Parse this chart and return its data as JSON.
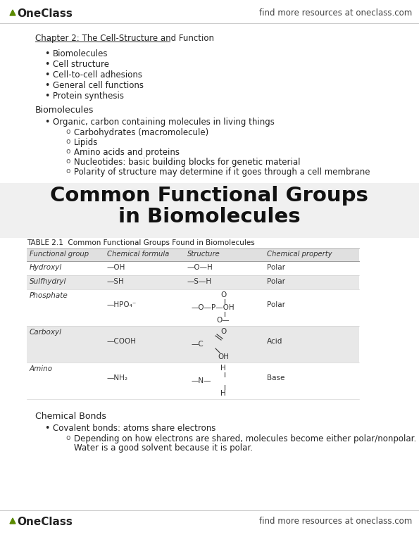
{
  "bg_color": "#ffffff",
  "header_text_right": "find more resources at oneclass.com",
  "footer_text_right": "find more resources at oneclass.com",
  "logo_color": "#5a8a00",
  "chapter_title": "Chapter 2: The Cell-Structure and Function",
  "bullet_items": [
    "Biomolecules",
    "Cell structure",
    "Cell-to-cell adhesions",
    "General cell functions",
    "Protein synthesis"
  ],
  "section_title": "Biomolecules",
  "sub_bullets": [
    "Organic, carbon containing molecules in living things"
  ],
  "sub_sub_bullets": [
    "Carbohydrates (macromolecule)",
    "Lipids",
    "Amino acids and proteins",
    "Nucleotides: basic building blocks for genetic material",
    "Polarity of structure may determine if it goes through a cell membrane"
  ],
  "big_title_line1": "Common Functional Groups",
  "big_title_line2": "in Biomolecules",
  "table_caption": "TABLE 2.1  Common Functional Groups Found in Biomolecules",
  "table_headers": [
    "Functional group",
    "Chemical formula",
    "Structure",
    "Chemical property"
  ],
  "chemical_bonds_title": "Chemical Bonds",
  "chemical_bonds_bullets": [
    "Covalent bonds: atoms share electrons"
  ],
  "chemical_bonds_sub_line1": "Depending on how electrons are shared, molecules become either polar/nonpolar.",
  "chemical_bonds_sub_line2": "Water is a good solvent because it is polar."
}
